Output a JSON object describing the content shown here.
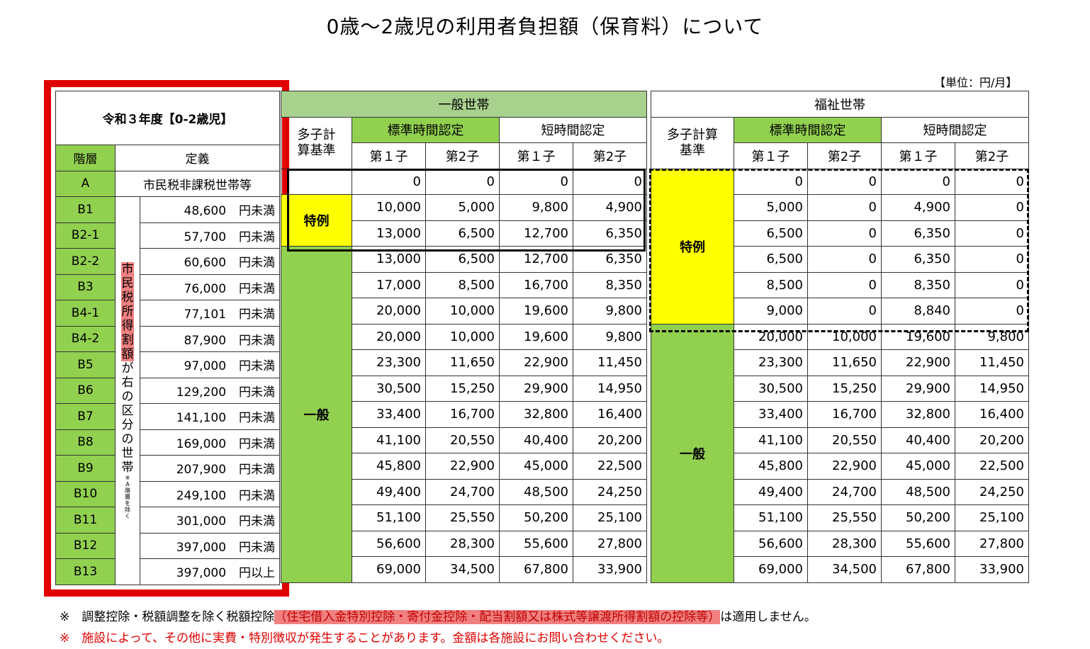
{
  "title": "0歳～2歳児の利用者負担額（保育料）について",
  "unit": "【単位：円/月】",
  "left": {
    "header": "令和３年度【0-2歳児】",
    "col_level": "階層",
    "col_def": "定義",
    "a_def": "市民税非課税世帯等",
    "vertical_hl": "市民税所得割額",
    "vertical_rest": "が右の区分の世帯",
    "vertical_note": "※A階層を除く",
    "rows": [
      {
        "level": "A"
      },
      {
        "level": "B1",
        "amount": "48,600",
        "cond": "円未満"
      },
      {
        "level": "B2-1",
        "amount": "57,700",
        "cond": "円未満"
      },
      {
        "level": "B2-2",
        "amount": "60,600",
        "cond": "円未満"
      },
      {
        "level": "B3",
        "amount": "76,000",
        "cond": "円未満"
      },
      {
        "level": "B4-1",
        "amount": "77,101",
        "cond": "円未満"
      },
      {
        "level": "B4-2",
        "amount": "87,900",
        "cond": "円未満"
      },
      {
        "level": "B5",
        "amount": "97,000",
        "cond": "円未満"
      },
      {
        "level": "B6",
        "amount": "129,200",
        "cond": "円未満"
      },
      {
        "level": "B7",
        "amount": "141,100",
        "cond": "円未満"
      },
      {
        "level": "B8",
        "amount": "169,000",
        "cond": "円未満"
      },
      {
        "level": "B9",
        "amount": "207,900",
        "cond": "円未満"
      },
      {
        "level": "B10",
        "amount": "249,100",
        "cond": "円未満"
      },
      {
        "level": "B11",
        "amount": "301,000",
        "cond": "円未満"
      },
      {
        "level": "B12",
        "amount": "397,000",
        "cond": "円未満"
      },
      {
        "level": "B13",
        "amount": "397,000",
        "cond": "円以上"
      }
    ]
  },
  "general": {
    "header": "一般世帯",
    "multi": "多子計算基準",
    "std": "標準時間認定",
    "short": "短時間認定",
    "first": "第１子",
    "second": "第2子",
    "special": "特例",
    "normal": "一般",
    "rows": [
      [
        "0",
        "0",
        "0",
        "0"
      ],
      [
        "10,000",
        "5,000",
        "9,800",
        "4,900"
      ],
      [
        "13,000",
        "6,500",
        "12,700",
        "6,350"
      ],
      [
        "13,000",
        "6,500",
        "12,700",
        "6,350"
      ],
      [
        "17,000",
        "8,500",
        "16,700",
        "8,350"
      ],
      [
        "20,000",
        "10,000",
        "19,600",
        "9,800"
      ],
      [
        "20,000",
        "10,000",
        "19,600",
        "9,800"
      ],
      [
        "23,300",
        "11,650",
        "22,900",
        "11,450"
      ],
      [
        "30,500",
        "15,250",
        "29,900",
        "14,950"
      ],
      [
        "33,400",
        "16,700",
        "32,800",
        "16,400"
      ],
      [
        "41,100",
        "20,550",
        "40,400",
        "20,200"
      ],
      [
        "45,800",
        "22,900",
        "45,000",
        "22,500"
      ],
      [
        "49,400",
        "24,700",
        "48,500",
        "24,250"
      ],
      [
        "51,100",
        "25,550",
        "50,200",
        "25,100"
      ],
      [
        "56,600",
        "28,300",
        "55,600",
        "27,800"
      ],
      [
        "69,000",
        "34,500",
        "67,800",
        "33,900"
      ]
    ]
  },
  "welfare": {
    "header": "福祉世帯",
    "multi": "多子計算基準",
    "std": "標準時間認定",
    "short": "短時間認定",
    "first": "第１子",
    "second": "第2子",
    "special": "特例",
    "normal": "一般",
    "rows": [
      [
        "0",
        "0",
        "0",
        "0"
      ],
      [
        "5,000",
        "0",
        "4,900",
        "0"
      ],
      [
        "6,500",
        "0",
        "6,350",
        "0"
      ],
      [
        "6,500",
        "0",
        "6,350",
        "0"
      ],
      [
        "8,500",
        "0",
        "8,350",
        "0"
      ],
      [
        "9,000",
        "0",
        "8,840",
        "0"
      ],
      [
        "20,000",
        "10,000",
        "19,600",
        "9,800"
      ],
      [
        "23,300",
        "11,650",
        "22,900",
        "11,450"
      ],
      [
        "30,500",
        "15,250",
        "29,900",
        "14,950"
      ],
      [
        "33,400",
        "16,700",
        "32,800",
        "16,400"
      ],
      [
        "41,100",
        "20,550",
        "40,400",
        "20,200"
      ],
      [
        "45,800",
        "22,900",
        "45,000",
        "22,500"
      ],
      [
        "49,400",
        "24,700",
        "48,500",
        "24,250"
      ],
      [
        "51,100",
        "25,550",
        "50,200",
        "25,100"
      ],
      [
        "56,600",
        "28,300",
        "55,600",
        "27,800"
      ],
      [
        "69,000",
        "34,500",
        "67,800",
        "33,900"
      ]
    ]
  },
  "notes": {
    "n1_mark": "※　調整控除・税額調整を除く税額控除",
    "n1_hl": "（住宅借入金特別控除・寄付金控除・配当割額又は株式等譲渡所得割額の控除等）",
    "n1_end": "は適用しません。",
    "n2": "※　施設によって、その他に実費・特別徴収が発生することがあります。金額は各施設にお問い合わせください。"
  },
  "colors": {
    "green": "#92d050",
    "light_green": "#a9d18e",
    "yellow": "#ffff00",
    "red": "#e00000",
    "highlight": "#f08080"
  }
}
